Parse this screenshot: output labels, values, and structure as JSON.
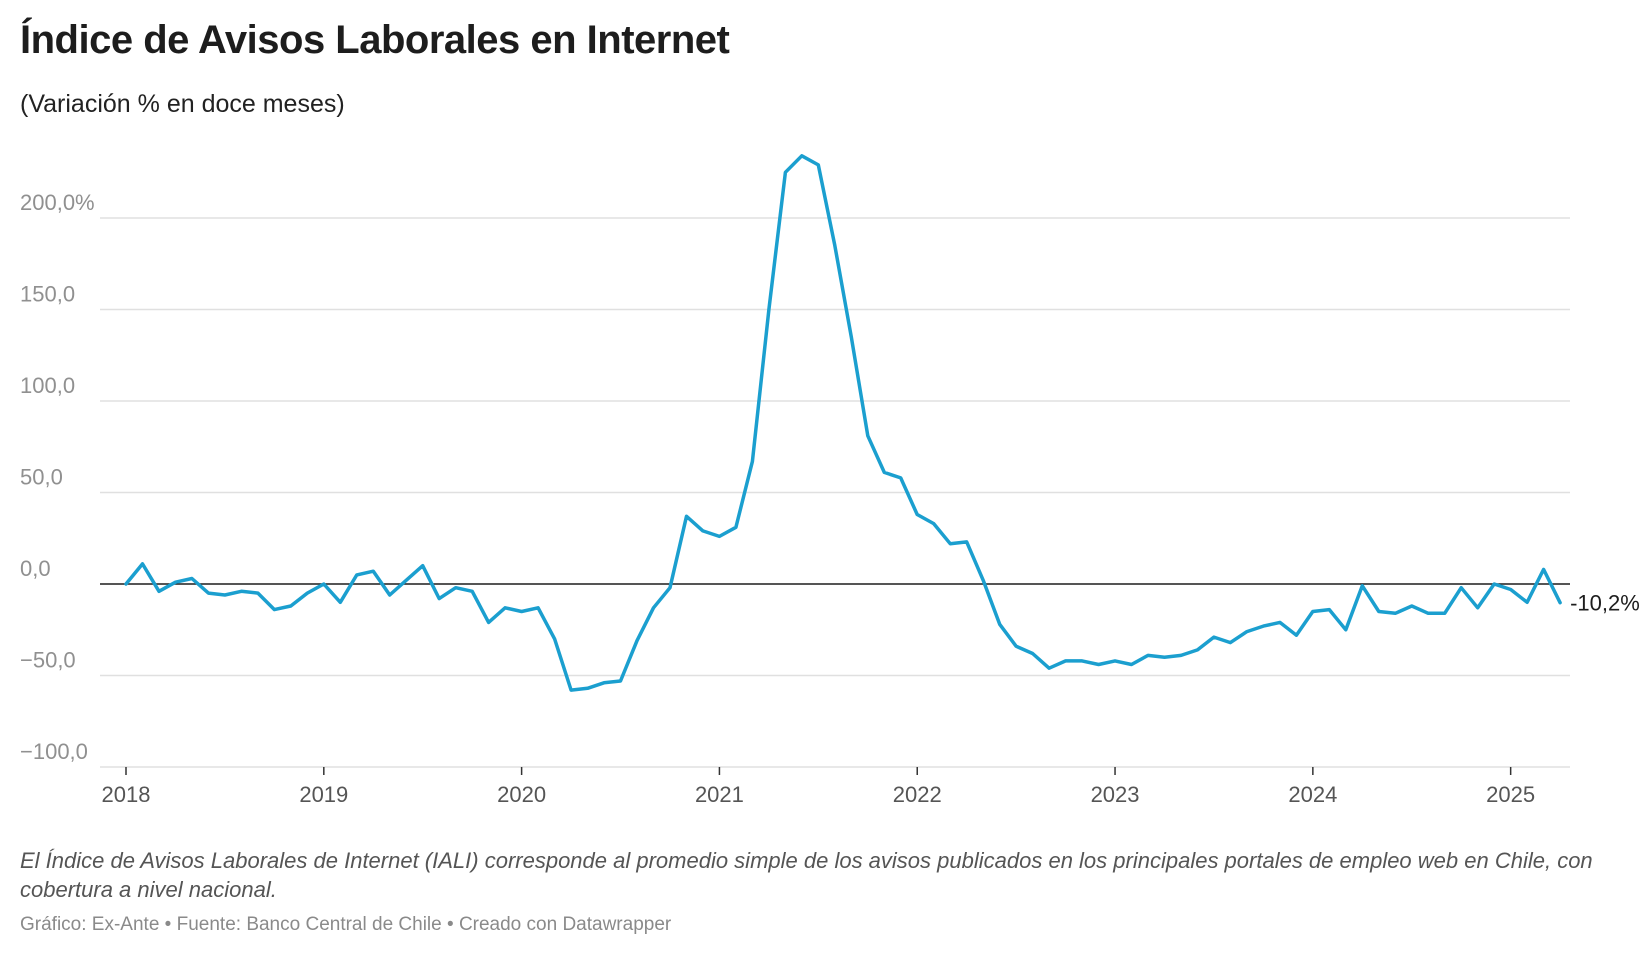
{
  "title": "Índice de Avisos Laborales en Internet",
  "subtitle": "(Variación % en doce meses)",
  "notes": "El Índice de Avisos Laborales de Internet (IALI) corresponde al promedio simple de los avisos publicados en los principales portales de empleo web en Chile, con cobertura a nivel nacional.",
  "byline": {
    "chart": "Gráfico: Ex-Ante",
    "source": "Fuente: Banco Central de Chile",
    "tool": "Creado con Datawrapper",
    "separator": " • "
  },
  "colors": {
    "line": "#1b9fcf",
    "grid": "#e0e0e0",
    "zero": "#1d1d1d",
    "tick_label": "#909090"
  },
  "chart_data": {
    "type": "line",
    "title": "Índice de Avisos Laborales en Internet",
    "ylabel": "",
    "xlabel": "",
    "ylim": [
      -100,
      235
    ],
    "xlim": [
      2018.0,
      2025.3
    ],
    "grid": "horizontal",
    "yticks": [
      {
        "value": 200,
        "label": "200,0%"
      },
      {
        "value": 150,
        "label": "150,0"
      },
      {
        "value": 100,
        "label": "100,0"
      },
      {
        "value": 50,
        "label": "50,0"
      },
      {
        "value": 0,
        "label": "0,0"
      },
      {
        "value": -50,
        "label": "−50,0"
      },
      {
        "value": -100,
        "label": "−100,0"
      }
    ],
    "xticks": [
      {
        "value": 2018,
        "label": "2018"
      },
      {
        "value": 2019,
        "label": "2019"
      },
      {
        "value": 2020,
        "label": "2020"
      },
      {
        "value": 2021,
        "label": "2021"
      },
      {
        "value": 2022,
        "label": "2022"
      },
      {
        "value": 2023,
        "label": "2023"
      },
      {
        "value": 2024,
        "label": "2024"
      },
      {
        "value": 2025,
        "label": "2025"
      }
    ],
    "series": [
      {
        "start": "2018-01",
        "frequency": "monthly",
        "values": [
          0,
          11,
          -4,
          1,
          3,
          -5,
          -6,
          -4,
          -5,
          -14,
          -12,
          -5,
          0,
          -10,
          5,
          7,
          -6,
          2,
          10,
          -8,
          -2,
          -4,
          -21,
          -13,
          -15,
          -13,
          -30,
          -58,
          -57,
          -54,
          -53,
          -31,
          -13,
          -2,
          37,
          29,
          26,
          31,
          67,
          150,
          225,
          234,
          229,
          185,
          135,
          81,
          61,
          58,
          38,
          33,
          22,
          23,
          2,
          -22,
          -34,
          -38,
          -46,
          -42,
          -42,
          -44,
          -42,
          -44,
          -39,
          -40,
          -39,
          -36,
          -29,
          -32,
          -26,
          -23,
          -21,
          -28,
          -15,
          -14,
          -25,
          -1,
          -15,
          -16,
          -12,
          -16,
          -16,
          -2,
          -13,
          0,
          -3,
          -10,
          8,
          -10.2
        ]
      }
    ],
    "annotations": [
      {
        "label": "-10,2%",
        "target": "last_point"
      }
    ]
  }
}
